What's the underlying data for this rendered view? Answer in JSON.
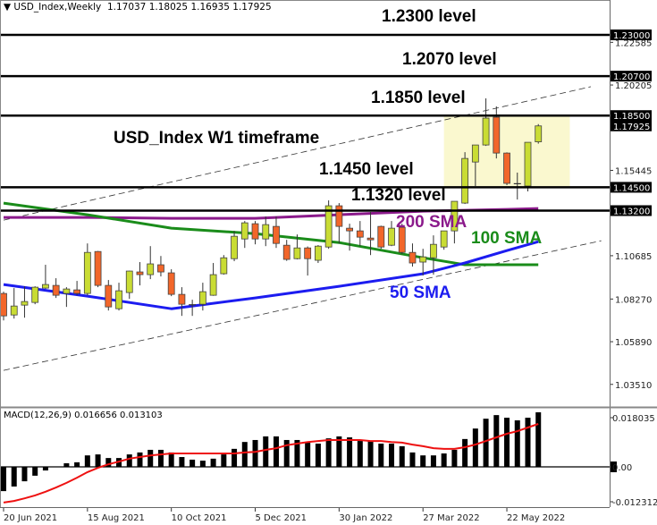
{
  "header": {
    "symbol_label": "USD_Index,Weekly",
    "ohlc": "1.17037 1.18025 1.16935 1.17925",
    "menu_icon": "triangle-down-icon"
  },
  "annotations": {
    "level_1_2300": "1.2300 level",
    "level_1_2070": "1.2070 level",
    "level_1_1850": "1.1850 level",
    "timeframe": "USD_Index W1 timeframe",
    "level_1_1450": "1.1450 level",
    "level_1_1320": "1.1320 level",
    "sma200": "200 SMA",
    "sma100": "100 SMA",
    "sma50": "50 SMA"
  },
  "colors": {
    "bull": "#c9dc34",
    "bear": "#f2662a",
    "sma200": "#8b1a8b",
    "sma100": "#1a8c1a",
    "sma50": "#1c1cf0",
    "zone": "#faf8cf",
    "signal": "#ee1111",
    "histogram": "#000000"
  },
  "x_axis": {
    "tick_labels": [
      "20 Jun 2021",
      "15 Aug 2021",
      "10 Oct 2021",
      "5 Dec 2021",
      "30 Jan 2022",
      "27 Mar 2022",
      "22 May 2022"
    ]
  },
  "chart_data": [
    {
      "type": "candlestick",
      "title": "USD_Index,Weekly",
      "current_price": "1.17925",
      "y_ticks": [
        "1.22585",
        "1.20205",
        "1.15445",
        "1.10685",
        "1.08270",
        "1.05890",
        "1.03510"
      ],
      "level_labels": [
        "1.23000",
        "1.20700",
        "1.18500",
        "1.17925",
        "1.14500",
        "1.13200"
      ],
      "levels": [
        1.23,
        1.207,
        1.185,
        1.145,
        1.132
      ],
      "candles_fields": [
        "date",
        "open",
        "high",
        "low",
        "close"
      ],
      "candles": [
        [
          "20 Jun 2021",
          1.0858,
          1.0868,
          1.0708,
          1.0733
        ],
        [
          "27 Jun 2021",
          1.0738,
          1.0888,
          1.0718,
          1.0788
        ],
        [
          "4 Jul 2021",
          1.0793,
          1.0898,
          1.0723,
          1.0813
        ],
        [
          "11 Jul 2021",
          1.0808,
          1.0898,
          1.0798,
          1.0893
        ],
        [
          "18 Jul 2021",
          1.0888,
          1.1018,
          1.0883,
          1.0908
        ],
        [
          "25 Jul 2021",
          1.0903,
          1.0943,
          1.0833,
          1.0848
        ],
        [
          "1 Aug 2021",
          1.0858,
          1.0893,
          1.0783,
          1.0883
        ],
        [
          "8 Aug 2021",
          1.0878,
          1.0928,
          1.0848,
          1.0858
        ],
        [
          "15 Aug 2021",
          1.0858,
          1.1137,
          1.0848,
          1.1087
        ],
        [
          "22 Aug 2021",
          1.1092,
          1.1095,
          1.0893,
          1.0903
        ],
        [
          "29 Aug 2021",
          1.0903,
          1.0933,
          1.0763,
          1.0783
        ],
        [
          "5 Sep 2021",
          1.0773,
          1.0918,
          1.0763,
          1.0873
        ],
        [
          "12 Sep 2021",
          1.0863,
          1.0985,
          1.0828,
          1.0983
        ],
        [
          "19 Sep 2021",
          1.0978,
          1.1033,
          1.0903,
          1.0963
        ],
        [
          "26 Sep 2021",
          1.0963,
          1.1122,
          1.0938,
          1.1023
        ],
        [
          "3 Oct 2021",
          1.1018,
          1.1067,
          1.0953,
          1.0978
        ],
        [
          "10 Oct 2021",
          1.0973,
          1.0993,
          1.0843,
          1.0853
        ],
        [
          "17 Oct 2021",
          1.0853,
          1.0893,
          1.0733,
          1.0798
        ],
        [
          "24 Oct 2021",
          1.0793,
          1.0823,
          1.0733,
          1.0795
        ],
        [
          "31 Oct 2021",
          1.0798,
          1.0918,
          1.0763,
          1.0868
        ],
        [
          "7 Nov 2021",
          1.0848,
          1.1028,
          1.0845,
          1.0963
        ],
        [
          "14 Nov 2021",
          1.0968,
          1.1072,
          1.0963,
          1.1057
        ],
        [
          "21 Nov 2021",
          1.1052,
          1.1207,
          1.1038,
          1.1177
        ],
        [
          "28 Nov 2021",
          1.1162,
          1.1262,
          1.1112,
          1.1252
        ],
        [
          "5 Dec 2021",
          1.1247,
          1.1262,
          1.1132,
          1.1162
        ],
        [
          "12 Dec 2021",
          1.1162,
          1.1287,
          1.1122,
          1.1242
        ],
        [
          "19 Dec 2021",
          1.1232,
          1.1287,
          1.1112,
          1.1137
        ],
        [
          "26 Dec 2021",
          1.1127,
          1.1157,
          1.104,
          1.1048
        ],
        [
          "2 Jan 2022",
          1.1052,
          1.1187,
          1.1048,
          1.1112
        ],
        [
          "9 Jan 2022",
          1.1112,
          1.112,
          1.0958,
          1.1052
        ],
        [
          "16 Jan 2022",
          1.1043,
          1.1128,
          1.1028,
          1.1122
        ],
        [
          "23 Jan 2022",
          1.1117,
          1.1377,
          1.1107,
          1.1347
        ],
        [
          "30 Jan 2022",
          1.1347,
          1.1362,
          1.1137,
          1.1232
        ],
        [
          "6 Feb 2022",
          1.1222,
          1.1247,
          1.1097,
          1.1207
        ],
        [
          "13 Feb 2022",
          1.1207,
          1.1262,
          1.1122,
          1.1172
        ],
        [
          "20 Feb 2022",
          1.1167,
          1.1312,
          1.1072,
          1.1157
        ],
        [
          "27 Feb 2022",
          1.1232,
          1.1236,
          1.1107,
          1.1117
        ],
        [
          "6 Mar 2022",
          1.1127,
          1.1262,
          1.1122,
          1.1222
        ],
        [
          "13 Mar 2022",
          1.1227,
          1.1247,
          1.1077,
          1.1087
        ],
        [
          "20 Mar 2022",
          1.1087,
          1.1137,
          1.1008,
          1.1028
        ],
        [
          "27 Mar 2022",
          1.1033,
          1.1107,
          1.0958,
          1.1062
        ],
        [
          "3 Apr 2022",
          1.1057,
          1.1182,
          1.0963,
          1.1132
        ],
        [
          "10 Apr 2022",
          1.1117,
          1.1207,
          1.1102,
          1.1207
        ],
        [
          "17 Apr 2022",
          1.1207,
          1.1372,
          1.1137,
          1.1372
        ],
        [
          "24 Apr 2022",
          1.1362,
          1.1646,
          1.1357,
          1.1611
        ],
        [
          "1 May 2022",
          1.1591,
          1.1686,
          1.1457,
          1.1686
        ],
        [
          "8 May 2022",
          1.1686,
          1.1946,
          1.1681,
          1.1836
        ],
        [
          "15 May 2022",
          1.1841,
          1.1901,
          1.1611,
          1.1641
        ],
        [
          "22 May 2022",
          1.1641,
          1.1645,
          1.1462,
          1.1472
        ],
        [
          "29 May 2022",
          1.1467,
          1.1532,
          1.1382,
          1.147
        ],
        [
          "5 Jun 2022",
          1.1457,
          1.1701,
          1.1427,
          1.1701
        ],
        [
          "12 Jun 2022",
          1.17037,
          1.18025,
          1.16935,
          1.17925
        ]
      ],
      "sma": [
        {
          "name": "200 SMA",
          "color": "#8b1a8b",
          "points": [
            [
              "20 Jun 2021",
              1.1282
            ],
            [
              "15 Aug 2021",
              1.1282
            ],
            [
              "10 Oct 2021",
              1.1277
            ],
            [
              "5 Dec 2021",
              1.1277
            ],
            [
              "30 Jan 2022",
              1.1297
            ],
            [
              "27 Mar 2022",
              1.1317
            ],
            [
              "24 Apr 2022",
              1.1322
            ],
            [
              "22 May 2022",
              1.1327
            ],
            [
              "12 Jun 2022",
              1.1332
            ]
          ]
        },
        {
          "name": "100 SMA",
          "color": "#1a8c1a",
          "points": [
            [
              "20 Jun 2021",
              1.1362
            ],
            [
              "15 Aug 2021",
              1.1297
            ],
            [
              "10 Oct 2021",
              1.1222
            ],
            [
              "5 Dec 2021",
              1.1192
            ],
            [
              "30 Jan 2022",
              1.1142
            ],
            [
              "27 Mar 2022",
              1.1057
            ],
            [
              "24 Apr 2022",
              1.1018
            ],
            [
              "22 May 2022",
              1.1018
            ],
            [
              "12 Jun 2022",
              1.1018
            ]
          ]
        },
        {
          "name": "50 SMA",
          "color": "#1c1cf0",
          "points": [
            [
              "20 Jun 2021",
              1.0908
            ],
            [
              "15 Aug 2021",
              1.0843
            ],
            [
              "10 Oct 2021",
              1.0773
            ],
            [
              "5 Dec 2021",
              1.0833
            ],
            [
              "30 Jan 2022",
              1.0898
            ],
            [
              "27 Mar 2022",
              1.0968
            ],
            [
              "24 Apr 2022",
              1.1028
            ],
            [
              "22 May 2022",
              1.1097
            ],
            [
              "12 Jun 2022",
              1.1147
            ]
          ]
        }
      ],
      "trendlines": [
        {
          "from": [
            "20 Jun 2021",
            1.1267
          ],
          "to": [
            "17 Jul 2022",
            1.2011
          ],
          "style": "dashed"
        },
        {
          "from": [
            "20 Jun 2021",
            1.0429
          ],
          "to": [
            "24 Jul 2022",
            1.1152
          ],
          "style": "dashed"
        }
      ],
      "zone": {
        "from": "10 Apr 2022",
        "to": "3 Jul 2022",
        "top": 1.185,
        "bottom": 1.1455
      }
    },
    {
      "type": "bar",
      "title": "MACD(12,26,9)",
      "main_value": "0.016656",
      "signal_value": "0.013103",
      "y_ticks": [
        "0.018035",
        "0.00",
        "-0.012312"
      ],
      "histogram": [
        -0.0074,
        -0.006,
        -0.0044,
        -0.0027,
        -0.0011,
        0.0,
        0.0011,
        0.0014,
        0.0035,
        0.0038,
        0.0027,
        0.0027,
        0.0038,
        0.0044,
        0.0052,
        0.0052,
        0.0044,
        0.003,
        0.0022,
        0.0019,
        0.0025,
        0.0038,
        0.0055,
        0.0076,
        0.0082,
        0.0093,
        0.0093,
        0.0082,
        0.0082,
        0.0076,
        0.0071,
        0.0087,
        0.0093,
        0.009,
        0.0079,
        0.0079,
        0.0071,
        0.0071,
        0.0063,
        0.0044,
        0.0035,
        0.0035,
        0.0041,
        0.0052,
        0.0085,
        0.0117,
        0.0147,
        0.0158,
        0.015,
        0.0142,
        0.015,
        0.016656
      ],
      "signal": [
        -0.0109,
        -0.0104,
        -0.0096,
        -0.0087,
        -0.0076,
        -0.0063,
        -0.0049,
        -0.0033,
        -0.0016,
        -0.0003,
        0.0008,
        0.0016,
        0.0025,
        0.003,
        0.0035,
        0.0038,
        0.0041,
        0.0041,
        0.0041,
        0.0041,
        0.0041,
        0.0041,
        0.0041,
        0.0044,
        0.0046,
        0.0052,
        0.0057,
        0.0066,
        0.0071,
        0.0076,
        0.0079,
        0.0082,
        0.0082,
        0.0082,
        0.0082,
        0.0079,
        0.0079,
        0.0076,
        0.0074,
        0.0068,
        0.0063,
        0.0057,
        0.0055,
        0.0055,
        0.006,
        0.0068,
        0.0079,
        0.009,
        0.0101,
        0.0109,
        0.012,
        0.013103
      ]
    }
  ]
}
